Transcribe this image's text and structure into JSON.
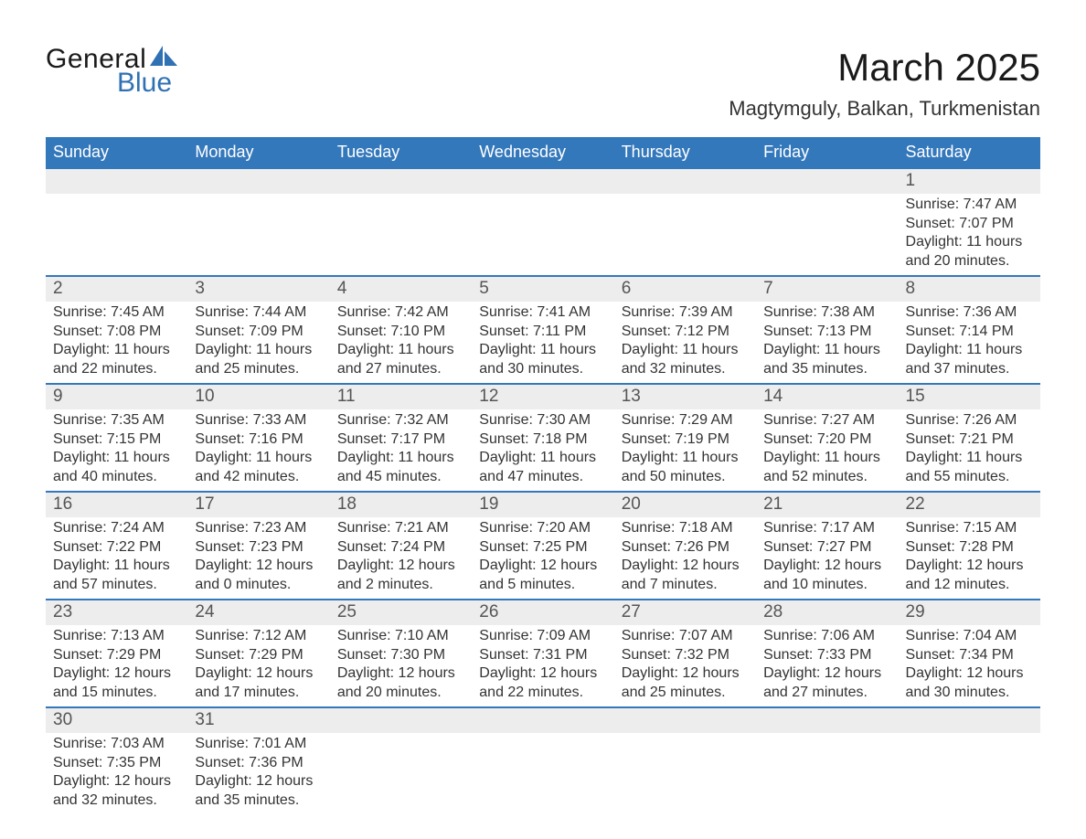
{
  "brand": {
    "word1": "General",
    "word2": "Blue",
    "word1_color": "#1a1a1a",
    "word2_color": "#2f71b3",
    "icon_color": "#2f71b3",
    "font_size_pt": 30
  },
  "title": {
    "month": "March 2025",
    "location": "Magtymguly, Balkan, Turkmenistan",
    "month_fontsize": 42,
    "location_fontsize": 22,
    "text_color": "#1a1a1a"
  },
  "calendar": {
    "header_bg": "#3478bc",
    "header_text_color": "#ffffff",
    "daynum_bg": "#ededed",
    "body_bg": "#ffffff",
    "border_color": "#3478bc",
    "text_color": "#333333",
    "body_fontsize": 16,
    "daynum_fontsize": 19,
    "days_of_week": [
      "Sunday",
      "Monday",
      "Tuesday",
      "Wednesday",
      "Thursday",
      "Friday",
      "Saturday"
    ],
    "labels": {
      "sunrise": "Sunrise:",
      "sunset": "Sunset:",
      "daylight": "Daylight:"
    },
    "weeks": [
      [
        null,
        null,
        null,
        null,
        null,
        null,
        {
          "n": "1",
          "sunrise": "7:47 AM",
          "sunset": "7:07 PM",
          "daylight_h": "11",
          "daylight_m": "20"
        }
      ],
      [
        {
          "n": "2",
          "sunrise": "7:45 AM",
          "sunset": "7:08 PM",
          "daylight_h": "11",
          "daylight_m": "22"
        },
        {
          "n": "3",
          "sunrise": "7:44 AM",
          "sunset": "7:09 PM",
          "daylight_h": "11",
          "daylight_m": "25"
        },
        {
          "n": "4",
          "sunrise": "7:42 AM",
          "sunset": "7:10 PM",
          "daylight_h": "11",
          "daylight_m": "27"
        },
        {
          "n": "5",
          "sunrise": "7:41 AM",
          "sunset": "7:11 PM",
          "daylight_h": "11",
          "daylight_m": "30"
        },
        {
          "n": "6",
          "sunrise": "7:39 AM",
          "sunset": "7:12 PM",
          "daylight_h": "11",
          "daylight_m": "32"
        },
        {
          "n": "7",
          "sunrise": "7:38 AM",
          "sunset": "7:13 PM",
          "daylight_h": "11",
          "daylight_m": "35"
        },
        {
          "n": "8",
          "sunrise": "7:36 AM",
          "sunset": "7:14 PM",
          "daylight_h": "11",
          "daylight_m": "37"
        }
      ],
      [
        {
          "n": "9",
          "sunrise": "7:35 AM",
          "sunset": "7:15 PM",
          "daylight_h": "11",
          "daylight_m": "40"
        },
        {
          "n": "10",
          "sunrise": "7:33 AM",
          "sunset": "7:16 PM",
          "daylight_h": "11",
          "daylight_m": "42"
        },
        {
          "n": "11",
          "sunrise": "7:32 AM",
          "sunset": "7:17 PM",
          "daylight_h": "11",
          "daylight_m": "45"
        },
        {
          "n": "12",
          "sunrise": "7:30 AM",
          "sunset": "7:18 PM",
          "daylight_h": "11",
          "daylight_m": "47"
        },
        {
          "n": "13",
          "sunrise": "7:29 AM",
          "sunset": "7:19 PM",
          "daylight_h": "11",
          "daylight_m": "50"
        },
        {
          "n": "14",
          "sunrise": "7:27 AM",
          "sunset": "7:20 PM",
          "daylight_h": "11",
          "daylight_m": "52"
        },
        {
          "n": "15",
          "sunrise": "7:26 AM",
          "sunset": "7:21 PM",
          "daylight_h": "11",
          "daylight_m": "55"
        }
      ],
      [
        {
          "n": "16",
          "sunrise": "7:24 AM",
          "sunset": "7:22 PM",
          "daylight_h": "11",
          "daylight_m": "57"
        },
        {
          "n": "17",
          "sunrise": "7:23 AM",
          "sunset": "7:23 PM",
          "daylight_h": "12",
          "daylight_m": "0"
        },
        {
          "n": "18",
          "sunrise": "7:21 AM",
          "sunset": "7:24 PM",
          "daylight_h": "12",
          "daylight_m": "2"
        },
        {
          "n": "19",
          "sunrise": "7:20 AM",
          "sunset": "7:25 PM",
          "daylight_h": "12",
          "daylight_m": "5"
        },
        {
          "n": "20",
          "sunrise": "7:18 AM",
          "sunset": "7:26 PM",
          "daylight_h": "12",
          "daylight_m": "7"
        },
        {
          "n": "21",
          "sunrise": "7:17 AM",
          "sunset": "7:27 PM",
          "daylight_h": "12",
          "daylight_m": "10"
        },
        {
          "n": "22",
          "sunrise": "7:15 AM",
          "sunset": "7:28 PM",
          "daylight_h": "12",
          "daylight_m": "12"
        }
      ],
      [
        {
          "n": "23",
          "sunrise": "7:13 AM",
          "sunset": "7:29 PM",
          "daylight_h": "12",
          "daylight_m": "15"
        },
        {
          "n": "24",
          "sunrise": "7:12 AM",
          "sunset": "7:29 PM",
          "daylight_h": "12",
          "daylight_m": "17"
        },
        {
          "n": "25",
          "sunrise": "7:10 AM",
          "sunset": "7:30 PM",
          "daylight_h": "12",
          "daylight_m": "20"
        },
        {
          "n": "26",
          "sunrise": "7:09 AM",
          "sunset": "7:31 PM",
          "daylight_h": "12",
          "daylight_m": "22"
        },
        {
          "n": "27",
          "sunrise": "7:07 AM",
          "sunset": "7:32 PM",
          "daylight_h": "12",
          "daylight_m": "25"
        },
        {
          "n": "28",
          "sunrise": "7:06 AM",
          "sunset": "7:33 PM",
          "daylight_h": "12",
          "daylight_m": "27"
        },
        {
          "n": "29",
          "sunrise": "7:04 AM",
          "sunset": "7:34 PM",
          "daylight_h": "12",
          "daylight_m": "30"
        }
      ],
      [
        {
          "n": "30",
          "sunrise": "7:03 AM",
          "sunset": "7:35 PM",
          "daylight_h": "12",
          "daylight_m": "32"
        },
        {
          "n": "31",
          "sunrise": "7:01 AM",
          "sunset": "7:36 PM",
          "daylight_h": "12",
          "daylight_m": "35"
        },
        null,
        null,
        null,
        null,
        null
      ]
    ]
  }
}
